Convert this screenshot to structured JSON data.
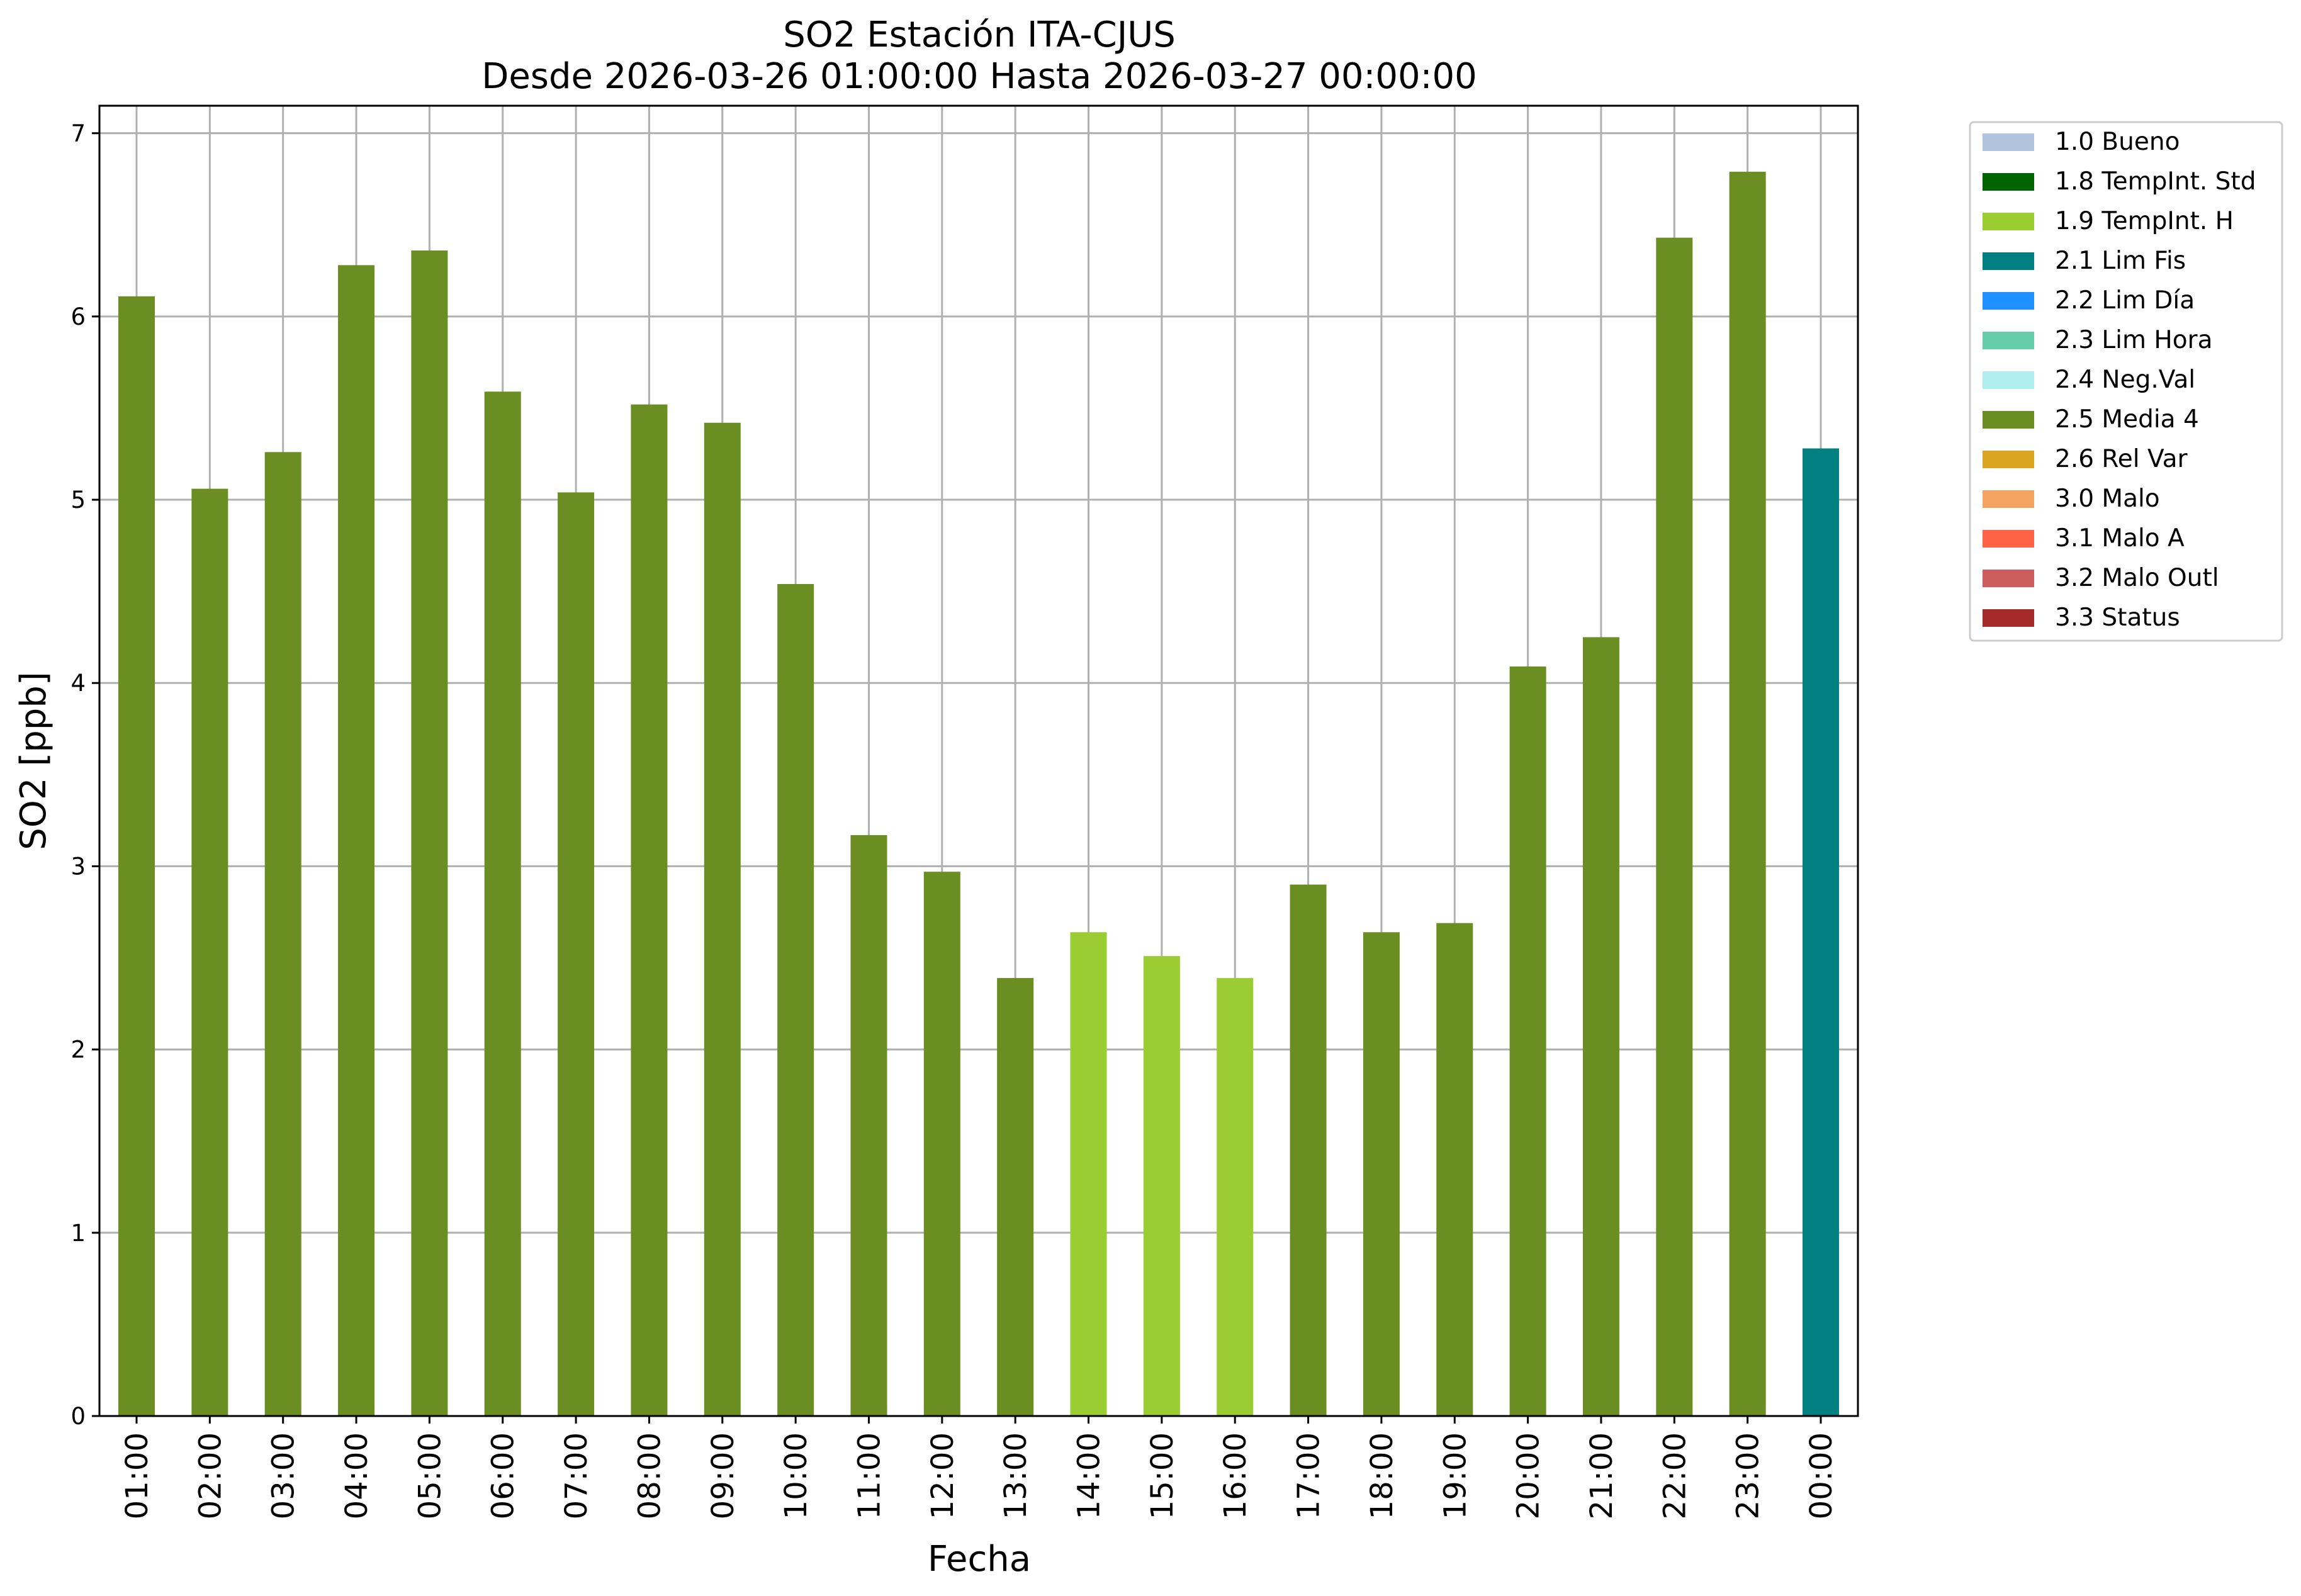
{
  "chart_data": {
    "type": "bar",
    "title": "SO2 Estación ITA-CJUS",
    "subtitle": "Desde 2026-03-26 01:00:00 Hasta 2026-03-27 00:00:00",
    "xlabel": "Fecha",
    "ylabel": "SO2 [ppb]",
    "ylim": [
      0,
      7.15
    ],
    "yticks": [
      0,
      1,
      2,
      3,
      4,
      5,
      6,
      7
    ],
    "grid": true,
    "legend_position": "outside-right-top",
    "categories": [
      "01:00",
      "02:00",
      "03:00",
      "04:00",
      "05:00",
      "06:00",
      "07:00",
      "08:00",
      "09:00",
      "10:00",
      "11:00",
      "12:00",
      "13:00",
      "14:00",
      "15:00",
      "16:00",
      "17:00",
      "18:00",
      "19:00",
      "20:00",
      "21:00",
      "22:00",
      "23:00",
      "00:00"
    ],
    "values": [
      6.11,
      5.06,
      5.26,
      6.28,
      6.36,
      5.59,
      5.04,
      5.52,
      5.42,
      4.54,
      3.17,
      2.97,
      2.39,
      2.64,
      2.51,
      2.39,
      2.9,
      2.64,
      2.69,
      4.09,
      4.25,
      6.43,
      6.79,
      5.28
    ],
    "flags": [
      "2.5 Media 4",
      "2.5 Media 4",
      "2.5 Media 4",
      "2.5 Media 4",
      "2.5 Media 4",
      "2.5 Media 4",
      "2.5 Media 4",
      "2.5 Media 4",
      "2.5 Media 4",
      "2.5 Media 4",
      "2.5 Media 4",
      "2.5 Media 4",
      "2.5 Media 4",
      "1.9 TempInt. H",
      "1.9 TempInt. H",
      "1.9 TempInt. H",
      "2.5 Media 4",
      "2.5 Media 4",
      "2.5 Media 4",
      "2.5 Media 4",
      "2.5 Media 4",
      "2.5 Media 4",
      "2.5 Media 4",
      "2.1 Lim Fis"
    ],
    "legend": [
      {
        "label": "1.0 Bueno",
        "color": "#b0c4de"
      },
      {
        "label": "1.8 TempInt. Std",
        "color": "#006400"
      },
      {
        "label": "1.9 TempInt. H",
        "color": "#9acd32"
      },
      {
        "label": "2.1 Lim Fis",
        "color": "#008080"
      },
      {
        "label": "2.2 Lim Día",
        "color": "#1e90ff"
      },
      {
        "label": "2.3 Lim Hora",
        "color": "#66cdaa"
      },
      {
        "label": "2.4 Neg.Val",
        "color": "#afeeee"
      },
      {
        "label": "2.5 Media 4",
        "color": "#6b8e23"
      },
      {
        "label": "2.6 Rel Var",
        "color": "#daa520"
      },
      {
        "label": "3.0 Malo",
        "color": "#f4a460"
      },
      {
        "label": "3.1 Malo A",
        "color": "#ff6347"
      },
      {
        "label": "3.2 Malo Outl",
        "color": "#cd5c5c"
      },
      {
        "label": "3.3 Status",
        "color": "#a52a2a"
      }
    ]
  }
}
